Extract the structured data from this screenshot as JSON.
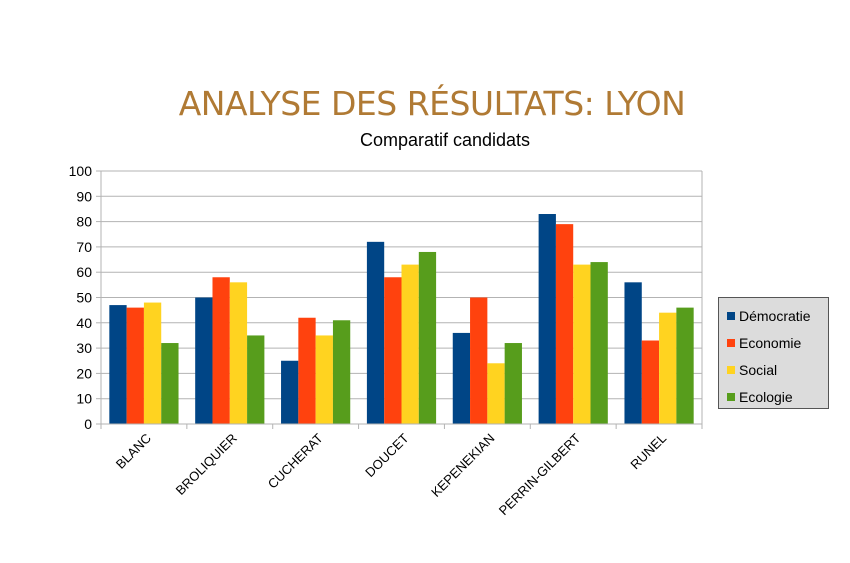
{
  "slide": {
    "title": "ANALYSE DES RÉSULTATS: LYON"
  },
  "chart_data": {
    "type": "bar",
    "title": "Comparatif candidats",
    "xlabel": "",
    "ylabel": "",
    "ylim": [
      0,
      100
    ],
    "yticks": [
      0,
      10,
      20,
      30,
      40,
      50,
      60,
      70,
      80,
      90,
      100
    ],
    "grid": true,
    "legend_position": "right",
    "categories": [
      "BLANC",
      "BROLIQUIER",
      "CUCHERAT",
      "DOUCET",
      "KEPENEKIAN",
      "PERRIN-GILBERT",
      "RUNEL"
    ],
    "series": [
      {
        "name": "Démocratie",
        "color": "#004586",
        "values": [
          47,
          50,
          25,
          72,
          36,
          83,
          56
        ]
      },
      {
        "name": "Economie",
        "color": "#ff420e",
        "values": [
          46,
          58,
          42,
          58,
          50,
          79,
          33
        ]
      },
      {
        "name": "Social",
        "color": "#ffd320",
        "values": [
          48,
          56,
          35,
          63,
          24,
          63,
          44
        ]
      },
      {
        "name": "Ecologie",
        "color": "#579d1c",
        "values": [
          32,
          35,
          41,
          68,
          32,
          64,
          46
        ]
      }
    ]
  }
}
